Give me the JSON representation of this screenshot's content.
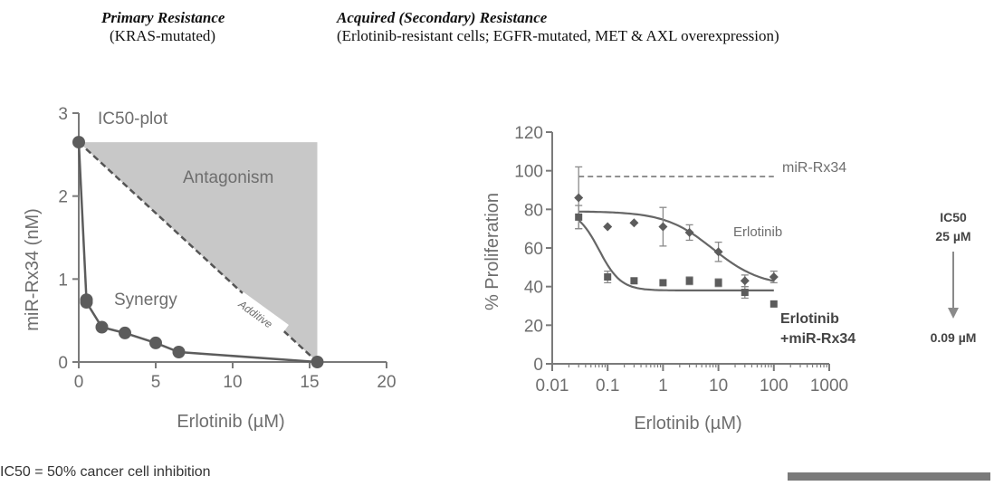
{
  "headers": {
    "left_title": "Primary Resistance",
    "left_sub": "(KRAS-mutated)",
    "right_title": "Acquired (Secondary) Resistance",
    "right_sub": "(Erlotinib-resistant cells; EGFR-mutated, MET & AXL overexpression)"
  },
  "footnote": "IC50 = 50% cancer cell inhibition",
  "colors": {
    "axis": "#7a7a7a",
    "marker": "#5c5c5c",
    "region": "#c8c8c8",
    "text": "#6e6e6e",
    "dark_text": "#444444"
  },
  "chart_data": [
    {
      "type": "line",
      "title": "IC50-plot",
      "xlabel": "Erlotinib (µM)",
      "ylabel": "miR-Rx34 (nM)",
      "xlim": [
        0,
        20
      ],
      "ylim": [
        0,
        3
      ],
      "xticks": [
        "0",
        "5",
        "10",
        "15",
        "20"
      ],
      "yticks": [
        "0",
        "1",
        "2",
        "3"
      ],
      "regions": {
        "antagonism": "Antagonism",
        "synergy": "Synergy",
        "additive": "Additive"
      },
      "isobologram_points": [
        {
          "x": 0,
          "y": 2.65
        },
        {
          "x": 0.5,
          "y": 0.75
        },
        {
          "x": 0.5,
          "y": 0.72
        },
        {
          "x": 1.5,
          "y": 0.42
        },
        {
          "x": 3.0,
          "y": 0.35
        },
        {
          "x": 5.0,
          "y": 0.23
        },
        {
          "x": 6.5,
          "y": 0.12
        },
        {
          "x": 15.5,
          "y": 0.0
        }
      ],
      "additive_line": [
        {
          "x": 0,
          "y": 2.65
        },
        {
          "x": 15.5,
          "y": 0.0
        }
      ],
      "antagonism_region": [
        {
          "x": 0,
          "y": 2.65
        },
        {
          "x": 15.5,
          "y": 2.65
        },
        {
          "x": 15.5,
          "y": 0.0
        }
      ]
    },
    {
      "type": "scatter",
      "xlabel": "Erlotinib (µM)",
      "ylabel": "% Proliferation",
      "xscale": "log",
      "xlim": [
        0.01,
        1000
      ],
      "ylim": [
        0,
        120
      ],
      "xticks": [
        "0.01",
        "0.1",
        "1",
        "10",
        "100",
        "1000"
      ],
      "yticks": [
        "0",
        "20",
        "40",
        "60",
        "80",
        "100",
        "120"
      ],
      "reference_line": {
        "name": "miR-Rx34",
        "y": 97
      },
      "series": [
        {
          "name": "Erlotinib",
          "marker": "diamond",
          "x": [
            0.03,
            0.1,
            0.3,
            1,
            3,
            10,
            30,
            100
          ],
          "y": [
            86,
            71,
            73,
            71,
            68,
            58,
            43,
            45
          ],
          "err": [
            16,
            0,
            0,
            10,
            4,
            5,
            3,
            3
          ],
          "fit": {
            "top": 79,
            "bottom": 40,
            "ec50": 8,
            "hill": 1
          }
        },
        {
          "name": "Erlotinib\n+miR-Rx34",
          "name_lines": [
            "Erlotinib",
            "+miR-Rx34"
          ],
          "marker": "square",
          "x": [
            0.03,
            0.1,
            0.3,
            1,
            3,
            10,
            30,
            100
          ],
          "y": [
            76,
            45,
            43,
            42,
            43,
            42,
            37,
            31
          ],
          "err": [
            6,
            3,
            0,
            0,
            2,
            2,
            3,
            0
          ],
          "fit": {
            "top": 80,
            "bottom": 38,
            "ec50": 0.07,
            "hill": 2.2
          }
        }
      ],
      "annotation": {
        "label": "IC50",
        "from": "25 µM",
        "to": "0.09 µM"
      }
    }
  ]
}
